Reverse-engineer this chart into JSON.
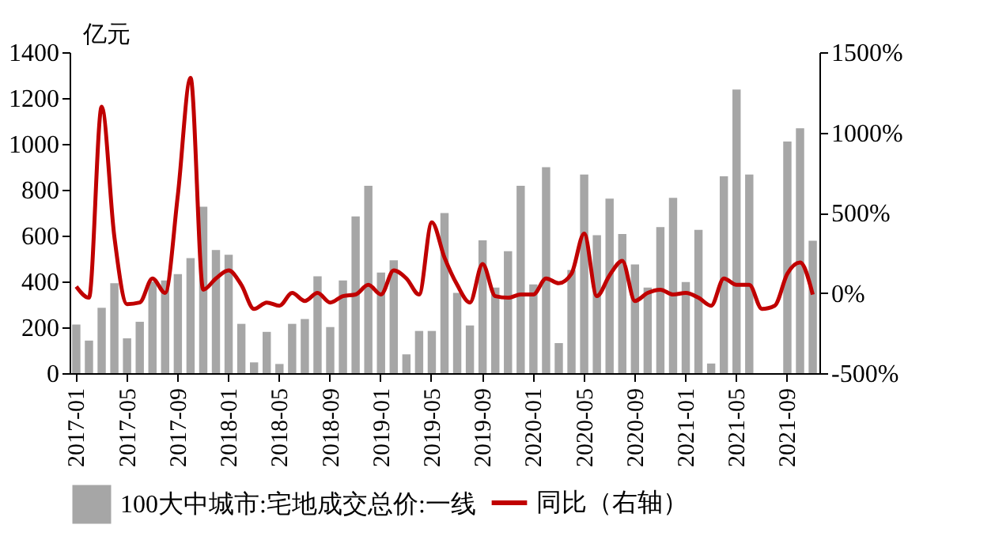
{
  "chart_data": {
    "type": "bar",
    "ylabel": "亿元",
    "categories": [
      "2017-01",
      null,
      null,
      null,
      "2017-05",
      null,
      null,
      null,
      "2017-09",
      null,
      null,
      null,
      "2018-01",
      null,
      null,
      null,
      "2018-05",
      null,
      null,
      null,
      "2018-09",
      null,
      null,
      null,
      "2019-01",
      null,
      null,
      null,
      "2019-05",
      null,
      null,
      null,
      "2019-09",
      null,
      null,
      null,
      "2020-01",
      null,
      null,
      null,
      "2020-05",
      null,
      null,
      null,
      "2020-09",
      null,
      null,
      null,
      "2021-01",
      null,
      null,
      null,
      "2021-05",
      null,
      null,
      null,
      "2021-09",
      null,
      null
    ],
    "series": [
      {
        "name": "100大中城市:宅地成交总价:一线",
        "color": "#a6a6a6",
        "values": [
          212,
          142,
          285,
          392,
          152,
          224,
          399,
          404,
          432,
          502,
          726,
          537,
          516,
          215,
          47,
          180,
          40,
          215,
          236,
          422,
          201,
          404,
          684,
          817,
          439,
          492,
          82,
          184,
          184,
          698,
          350,
          208,
          579,
          373,
          532,
          817,
          387,
          898,
          131,
          450,
          866,
          602,
          761,
          607,
          474,
          373,
          637,
          765,
          397,
          625,
          42,
          859,
          1237,
          866,
          null,
          null,
          1010,
          1068,
          578
        ]
      },
      {
        "name": "同比（右轴）",
        "type": "line",
        "axis": "y2",
        "color": "#c00000",
        "values": [
          40,
          -30,
          1160,
          350,
          -70,
          -60,
          90,
          0,
          610,
          1340,
          20,
          90,
          140,
          50,
          -100,
          -60,
          -80,
          0,
          -50,
          0,
          -60,
          -20,
          -10,
          50,
          -10,
          140,
          90,
          -10,
          440,
          220,
          50,
          -60,
          180,
          -20,
          -30,
          -10,
          -10,
          90,
          60,
          120,
          370,
          -20,
          110,
          200,
          -50,
          0,
          20,
          -10,
          0,
          -30,
          -80,
          90,
          50,
          50,
          -100,
          -80,
          120,
          190,
          -10
        ]
      }
    ],
    "ylim": [
      0,
      1400
    ],
    "yticks": [
      0,
      200,
      400,
      600,
      800,
      1000,
      1200,
      1400
    ],
    "y2lim": [
      -500,
      1500
    ],
    "y2ticks": [
      {
        "value": -500,
        "label": "-500%"
      },
      {
        "value": 0,
        "label": "0%"
      },
      {
        "value": 500,
        "label": "500%"
      },
      {
        "value": 1000,
        "label": "1000%"
      },
      {
        "value": 1500,
        "label": "1500%"
      }
    ],
    "grid": false,
    "legend": "bottom"
  }
}
